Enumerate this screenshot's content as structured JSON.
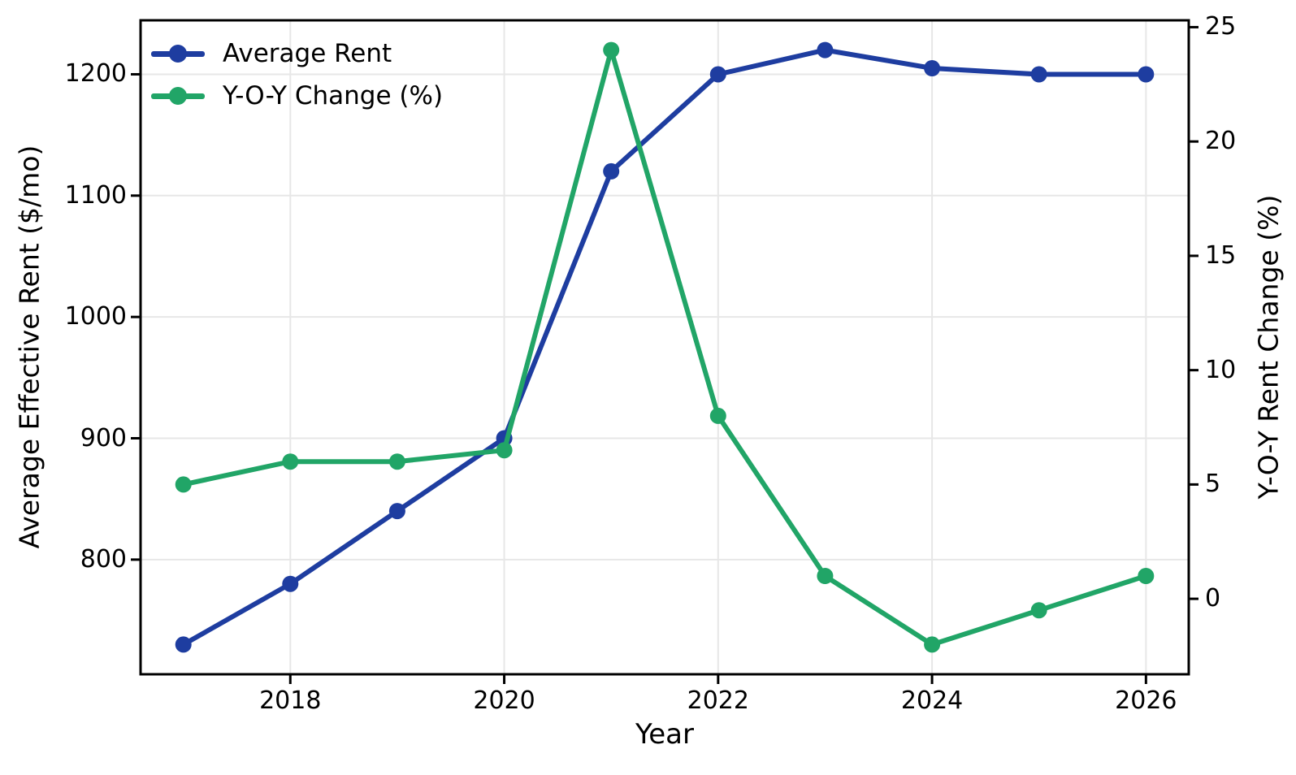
{
  "chart_data": {
    "type": "line",
    "title": "",
    "xlabel": "Year",
    "x": [
      2017,
      2018,
      2019,
      2020,
      2021,
      2022,
      2023,
      2024,
      2025,
      2026
    ],
    "x_ticks": [
      2018,
      2020,
      2022,
      2024,
      2026
    ],
    "x_tick_labels": [
      "2018",
      "2020",
      "2022",
      "2024",
      "2026"
    ],
    "xlim": [
      2016.6,
      2026.4
    ],
    "grid": "on (left-axis horizontal + x-axis vertical, light gray)",
    "legend_position": "upper-left, no frame",
    "left_axis": {
      "label": "Average Effective Rent ($/mo)",
      "ticks": [
        800,
        900,
        1000,
        1100,
        1200
      ],
      "tick_labels": [
        "800",
        "900",
        "1000",
        "1100",
        "1200"
      ],
      "lim": [
        705.5,
        1244.5
      ]
    },
    "right_axis": {
      "label": "Y-O-Y Rent Change (%)",
      "ticks": [
        0,
        5,
        10,
        15,
        20,
        25
      ],
      "tick_labels": [
        "0",
        "5",
        "10",
        "15",
        "20",
        "25"
      ],
      "lim": [
        -3.3,
        25.3
      ]
    },
    "series": [
      {
        "name": "Average Rent",
        "axis": "left",
        "color": "#1e3da0",
        "marker": "circle",
        "values": [
          730,
          780,
          840,
          900,
          1120,
          1200,
          1220,
          1205,
          1200,
          1200
        ]
      },
      {
        "name": "Y-O-Y Change (%)",
        "axis": "right",
        "color": "#21a567",
        "marker": "circle",
        "values": [
          5.0,
          6.0,
          6.0,
          6.5,
          24.0,
          8.0,
          1.0,
          -2.0,
          -0.5,
          1.0
        ]
      }
    ]
  },
  "legend": {
    "items": [
      {
        "label": "Average Rent",
        "color": "#1e3da0"
      },
      {
        "label": "Y-O-Y Change (%)",
        "color": "#21a567"
      }
    ]
  },
  "colors": {
    "background": "#ffffff",
    "spine": "#000000",
    "grid": "#e7e7e7",
    "tick_text": "#000000",
    "series_blue": "#1e3da0",
    "series_green": "#21a567"
  }
}
